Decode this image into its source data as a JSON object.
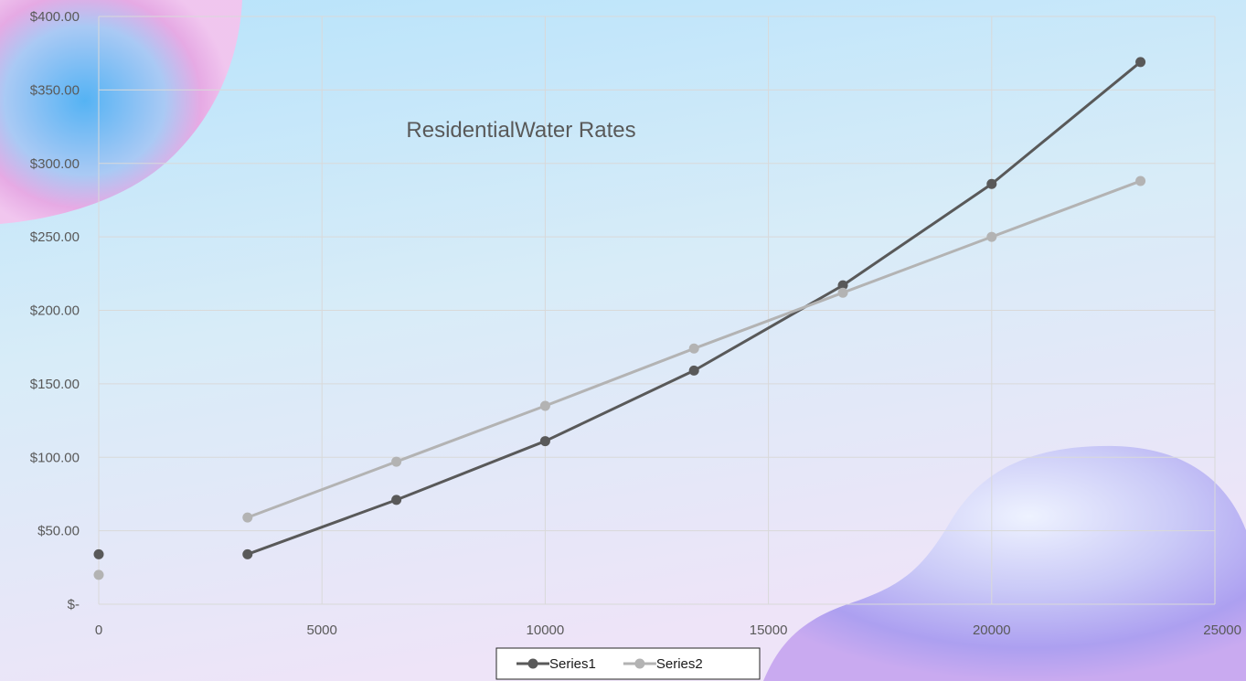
{
  "chart_data": {
    "type": "line",
    "title": "ResidentialWater Rates",
    "xlabel": "",
    "ylabel": "",
    "xlim": [
      0,
      25000
    ],
    "ylim": [
      0,
      400
    ],
    "x_ticks": [
      0,
      5000,
      10000,
      15000,
      20000,
      25000
    ],
    "x_tick_labels": [
      "0",
      "5000",
      "10000",
      "15000",
      "20000",
      "25000"
    ],
    "y_ticks": [
      0,
      50,
      100,
      150,
      200,
      250,
      300,
      350,
      400
    ],
    "y_tick_labels": [
      "$-",
      "$50.00",
      "$100.00",
      "$150.00",
      "$200.00",
      "$250.00",
      "$300.00",
      "$350.00",
      "$400.00"
    ],
    "grid": true,
    "legend_position": "bottom",
    "series": [
      {
        "name": "Series1",
        "color": "#595959",
        "points": [
          {
            "x": 0,
            "y": 34,
            "connected": false
          },
          {
            "x": 3333,
            "y": 34
          },
          {
            "x": 6667,
            "y": 71
          },
          {
            "x": 10000,
            "y": 111
          },
          {
            "x": 13333,
            "y": 159
          },
          {
            "x": 16667,
            "y": 217
          },
          {
            "x": 20000,
            "y": 286
          },
          {
            "x": 23333,
            "y": 369
          }
        ]
      },
      {
        "name": "Series2",
        "color": "#b3b3b3",
        "points": [
          {
            "x": 0,
            "y": 20,
            "connected": false
          },
          {
            "x": 3333,
            "y": 59
          },
          {
            "x": 6667,
            "y": 97
          },
          {
            "x": 10000,
            "y": 135
          },
          {
            "x": 13333,
            "y": 174
          },
          {
            "x": 16667,
            "y": 212
          },
          {
            "x": 20000,
            "y": 250
          },
          {
            "x": 23333,
            "y": 288
          }
        ]
      }
    ]
  },
  "colors": {
    "gridline": "#d9d9d9",
    "axis_text": "#595959",
    "legend_border": "#262626"
  }
}
